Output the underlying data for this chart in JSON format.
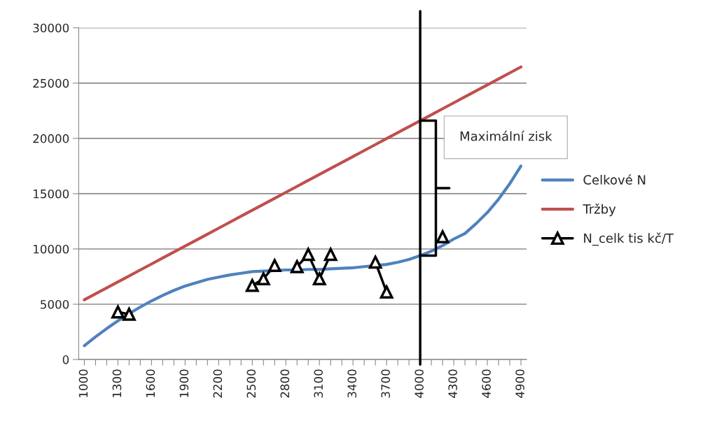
{
  "chart_data": {
    "type": "line",
    "x": [
      1000,
      1100,
      1200,
      1300,
      1400,
      1500,
      1600,
      1700,
      1800,
      1900,
      2000,
      2100,
      2200,
      2300,
      2400,
      2500,
      2600,
      2700,
      2800,
      2900,
      3000,
      3100,
      3200,
      3300,
      3400,
      3500,
      3600,
      3700,
      3800,
      3900,
      4000,
      4100,
      4200,
      4300,
      4400,
      4500,
      4600,
      4700,
      4800,
      4900
    ],
    "series": [
      {
        "name": "Celkové N",
        "color": "#4f81bd",
        "marker": "none",
        "values": [
          1250,
          2050,
          2800,
          3500,
          4150,
          4750,
          5300,
          5800,
          6250,
          6650,
          6950,
          7250,
          7450,
          7650,
          7800,
          7950,
          8000,
          8050,
          8100,
          8100,
          8150,
          8150,
          8200,
          8250,
          8300,
          8400,
          8500,
          8600,
          8800,
          9050,
          9400,
          9800,
          10300,
          10900,
          11400,
          12300,
          13300,
          14500,
          15900,
          17500
        ]
      },
      {
        "name": "Tržby",
        "color": "#c0504d",
        "marker": "none",
        "values": [
          5400,
          5940,
          6480,
          7020,
          7560,
          8100,
          8640,
          9180,
          9720,
          10260,
          10800,
          11340,
          11880,
          12420,
          12960,
          13500,
          14040,
          14580,
          15120,
          15660,
          16200,
          16740,
          17280,
          17820,
          18360,
          18900,
          19440,
          19980,
          20520,
          21060,
          21600,
          22140,
          22680,
          23220,
          23760,
          24300,
          24840,
          25380,
          25920,
          26460
        ]
      },
      {
        "name": "N_celk tis kč/T",
        "color": "#000000",
        "marker": "triangle",
        "values": [
          null,
          null,
          null,
          4300,
          4100,
          null,
          null,
          null,
          null,
          null,
          null,
          null,
          null,
          null,
          null,
          6700,
          7300,
          8500,
          null,
          8400,
          9500,
          7300,
          9500,
          null,
          null,
          null,
          8800,
          6100,
          null,
          null,
          null,
          null,
          11100,
          null,
          null,
          null,
          null,
          null,
          null,
          null
        ]
      }
    ],
    "xlim": [
      950,
      4950
    ],
    "xticks": [
      1000,
      {
        "value": 1100,
        "label": null
      },
      {
        "value": 1200,
        "label": null
      },
      1300,
      {
        "value": 1400,
        "label": null
      },
      {
        "value": 1500,
        "label": null
      },
      1600,
      {
        "value": 1700,
        "label": null
      },
      {
        "value": 1800,
        "label": null
      },
      1900,
      {
        "value": 2000,
        "label": null
      },
      {
        "value": 2100,
        "label": null
      },
      2200,
      {
        "value": 2300,
        "label": null
      },
      {
        "value": 2400,
        "label": null
      },
      2500,
      {
        "value": 2600,
        "label": null
      },
      {
        "value": 2700,
        "label": null
      },
      2800,
      {
        "value": 2900,
        "label": null
      },
      {
        "value": 3000,
        "label": null
      },
      3100,
      {
        "value": 3200,
        "label": null
      },
      {
        "value": 3300,
        "label": null
      },
      3400,
      {
        "value": 3500,
        "label": null
      },
      {
        "value": 3600,
        "label": null
      },
      3700,
      {
        "value": 3800,
        "label": null
      },
      {
        "value": 3900,
        "label": null
      },
      4000,
      {
        "value": 4100,
        "label": null
      },
      {
        "value": 4200,
        "label": null
      },
      4300,
      {
        "value": 4400,
        "label": null
      },
      {
        "value": 4500,
        "label": null
      },
      4600,
      {
        "value": 4700,
        "label": null
      },
      {
        "value": 4800,
        "label": null
      },
      4900
    ],
    "ylim": [
      0,
      30000
    ],
    "yticks": [
      0,
      5000,
      10000,
      15000,
      20000,
      25000,
      30000
    ],
    "grid": "y",
    "legend": "right",
    "ref_lines": [
      {
        "axis": "x",
        "value": 4000,
        "color": "#000000"
      }
    ],
    "annotations": [
      "Maximální zisk"
    ]
  }
}
